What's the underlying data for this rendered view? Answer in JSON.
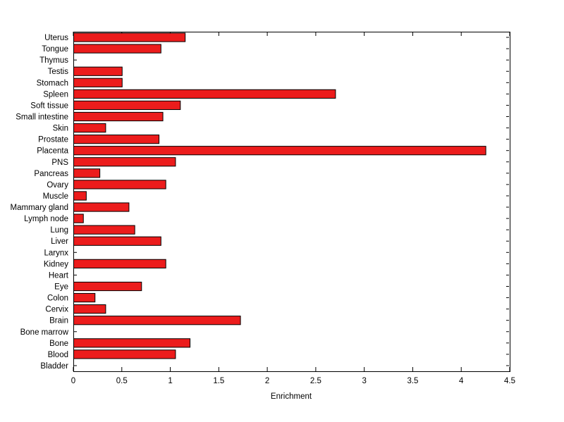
{
  "figure": {
    "background_color": "#ffffff"
  },
  "chart_data": {
    "type": "barh",
    "title": "",
    "xlabel": "Enrichment",
    "ylabel": "",
    "xlim": [
      0,
      4.5
    ],
    "xticks": [
      0,
      0.5,
      1,
      1.5,
      2,
      2.5,
      3,
      3.5,
      4,
      4.5
    ],
    "xtick_labels": [
      "0",
      "0.5",
      "1",
      "1.5",
      "2",
      "2.5",
      "3",
      "3.5",
      "4",
      "4.5"
    ],
    "category_order": "top-to-bottom",
    "categories": [
      "Uterus",
      "Tongue",
      "Thymus",
      "Testis",
      "Stomach",
      "Spleen",
      "Soft tissue",
      "Small intestine",
      "Skin",
      "Prostate",
      "Placenta",
      "PNS",
      "Pancreas",
      "Ovary",
      "Muscle",
      "Mammary gland",
      "Lymph node",
      "Lung",
      "Liver",
      "Larynx",
      "Kidney",
      "Heart",
      "Eye",
      "Colon",
      "Cervix",
      "Brain",
      "Bone marrow",
      "Bone",
      "Blood",
      "Bladder"
    ],
    "values": [
      1.15,
      0.9,
      0,
      0.5,
      0.5,
      2.7,
      1.1,
      0.92,
      0.33,
      0.88,
      4.25,
      1.05,
      0.27,
      0.95,
      0.13,
      0.57,
      0.1,
      0.63,
      0.9,
      0,
      0.95,
      0,
      0.7,
      0.22,
      0.33,
      1.72,
      0,
      1.2,
      1.05,
      0
    ],
    "bar_color": "#ec1c1c",
    "bar_edge_color": "#000000",
    "axis_color": "#000000",
    "grid": false,
    "legend": null
  }
}
